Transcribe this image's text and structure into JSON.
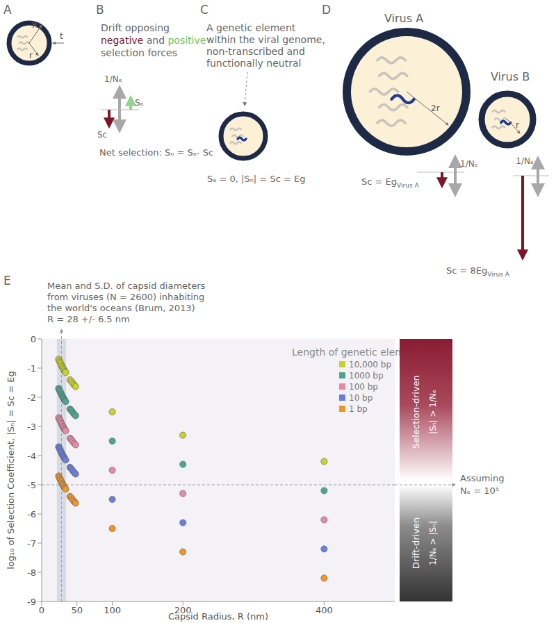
{
  "panels": {
    "A": {
      "label": "A",
      "R": "R",
      "r": "r",
      "t": "t"
    },
    "B": {
      "label": "B",
      "line1": "Drift opposing",
      "negative": "negative",
      "and": "and",
      "positive": "positive",
      "line3": "selection forces",
      "drift": "1/Nₑ",
      "sa": "Sₐ",
      "sc": "Sc",
      "net": "Net selection: Sₙ = Sₐ- Sc"
    },
    "C": {
      "label": "C",
      "note": [
        "A genetic element",
        "within the viral genome,",
        "non-transcribed and",
        "functionally neutral"
      ],
      "equation": "Sₐ = 0, |Sₙ| = Sc = Eg"
    },
    "D": {
      "label": "D",
      "virus_a": "Virus A",
      "virus_b": "Virus B",
      "radius_a": "2r",
      "radius_b": "r",
      "drift": "1/Nₑ",
      "sc_a": {
        "text": "Sc = Eg",
        "sub": "Virus A"
      },
      "sc_b": {
        "text": "Sc = 8Eg",
        "sub": "Virus A"
      }
    }
  },
  "chart_data": {
    "type": "scatter",
    "panel_label": "E",
    "x_label": "Capsid Radius, R (nm)",
    "y_label": "log₁₀ of Selection Coefficient, |Sₙ| = Sc = Eg",
    "xlim": [
      0,
      500
    ],
    "xticks": [
      0,
      50,
      100,
      200,
      400
    ],
    "ylim": [
      -9,
      0
    ],
    "yticks": [
      -9,
      -8,
      -7,
      -6,
      -5,
      -4,
      -3,
      -2,
      -1,
      0
    ],
    "grid": false,
    "legend": "top right",
    "legend_title": "Length of genetic elements",
    "marker": "circle",
    "x": [
      24,
      25,
      26,
      27,
      28,
      29,
      30,
      31,
      32,
      33,
      34,
      40,
      42,
      44,
      46,
      48,
      100,
      200,
      400
    ],
    "series": [
      {
        "name": "10,000 bp",
        "color": "#c6d32c",
        "values": [
          -0.7,
          -0.75,
          -0.8,
          -0.85,
          -0.9,
          -0.95,
          -1.0,
          -1.03,
          -1.08,
          -1.12,
          -1.15,
          -1.4,
          -1.45,
          -1.52,
          -1.58,
          -1.63,
          -2.5,
          -3.3,
          -4.2
        ]
      },
      {
        "name": "1000 bp",
        "color": "#4fa593",
        "values": [
          -1.7,
          -1.75,
          -1.8,
          -1.85,
          -1.9,
          -1.95,
          -2.0,
          -2.03,
          -2.08,
          -2.12,
          -2.15,
          -2.4,
          -2.45,
          -2.52,
          -2.58,
          -2.63,
          -3.5,
          -4.3,
          -5.2
        ]
      },
      {
        "name": "100 bp",
        "color": "#e58aa3",
        "values": [
          -2.7,
          -2.75,
          -2.8,
          -2.85,
          -2.9,
          -2.95,
          -3.0,
          -3.03,
          -3.08,
          -3.12,
          -3.15,
          -3.4,
          -3.45,
          -3.52,
          -3.58,
          -3.63,
          -4.5,
          -5.3,
          -6.2
        ]
      },
      {
        "name": "10 bp",
        "color": "#6a80d8",
        "values": [
          -3.7,
          -3.75,
          -3.8,
          -3.85,
          -3.9,
          -3.95,
          -4.0,
          -4.03,
          -4.08,
          -4.12,
          -4.15,
          -4.4,
          -4.45,
          -4.52,
          -4.58,
          -4.63,
          -5.5,
          -6.3,
          -7.2
        ]
      },
      {
        "name": "1 bp",
        "color": "#f0952a",
        "values": [
          -4.7,
          -4.75,
          -4.8,
          -4.85,
          -4.9,
          -4.95,
          -5.0,
          -5.03,
          -5.08,
          -5.12,
          -5.15,
          -5.4,
          -5.45,
          -5.52,
          -5.58,
          -5.63,
          -6.5,
          -7.3,
          -8.2
        ]
      }
    ],
    "annotation": {
      "lines": [
        "Mean and S.D. of capsid diameters",
        "from viruses (N = 2600) inhabiting",
        "the world's oceans (Brum, 2013)",
        "R = 28 +/- 6.5 nm"
      ],
      "mean": 28,
      "sd": 6.5
    },
    "threshold": {
      "value": -5,
      "label": [
        "Assuming",
        "Nₑ = 10⁵"
      ]
    },
    "regions": {
      "above": [
        "Selection-driven",
        "|Sₙ| > 1/Nₑ"
      ],
      "below": [
        "Drift-driven",
        "1/Nₑ > |Sₙ|"
      ]
    }
  }
}
